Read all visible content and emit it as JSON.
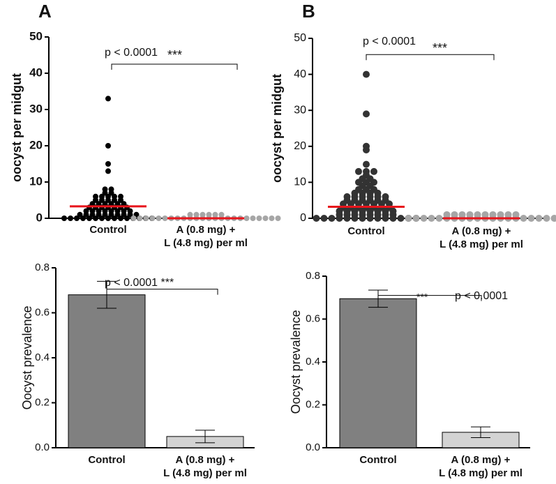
{
  "chart_data": [
    {
      "type": "dotplot",
      "panel": "A",
      "ylabel": "oocyst per midgut",
      "categories": [
        "Control",
        "A (0.8 mg) +\nL (4.8 mg) per ml"
      ],
      "colors": [
        "#000000",
        "#a6a6a6"
      ],
      "values": [
        [
          33,
          20,
          15,
          13,
          8,
          8,
          7,
          7,
          6,
          6,
          6,
          6,
          6,
          5,
          5,
          5,
          5,
          5,
          4,
          4,
          4,
          4,
          4,
          4,
          3,
          3,
          3,
          3,
          3,
          3,
          3,
          2,
          2,
          2,
          2,
          2,
          2,
          2,
          2,
          1,
          1,
          1,
          1,
          1,
          1,
          1,
          1,
          1,
          1,
          0,
          0,
          0,
          0,
          0,
          0,
          0,
          0,
          0,
          0,
          0,
          0,
          0,
          0,
          0
        ],
        [
          1,
          1,
          1,
          1,
          1,
          1,
          0,
          0,
          0,
          0,
          0,
          0,
          0,
          0,
          0,
          0,
          0,
          0,
          0,
          0,
          0,
          0,
          0,
          0,
          0,
          0,
          0,
          0,
          0,
          0
        ]
      ],
      "medians": [
        3.3,
        0
      ],
      "median_color": "#e8141b",
      "annotations": [
        "p < 0.0001",
        "***"
      ],
      "ylim": [
        0,
        50
      ],
      "yticks": [
        0,
        10,
        20,
        30,
        40,
        50
      ]
    },
    {
      "type": "dotplot",
      "panel": "B",
      "ylabel": "oocyst per midgut",
      "categories": [
        "Control",
        "A (0.8 mg) +\nL (4.8 mg) per ml"
      ],
      "colors": [
        "#333333",
        "#a6a6a6"
      ],
      "values": [
        [
          40,
          29,
          20,
          19,
          15,
          13,
          13,
          13,
          12,
          11,
          11,
          10,
          10,
          10,
          9,
          9,
          8,
          8,
          8,
          7,
          7,
          7,
          7,
          6,
          6,
          6,
          6,
          6,
          6,
          5,
          5,
          5,
          5,
          5,
          5,
          4,
          4,
          4,
          4,
          4,
          4,
          4,
          3,
          3,
          3,
          3,
          3,
          3,
          3,
          2,
          2,
          2,
          2,
          2,
          2,
          2,
          2,
          1,
          1,
          1,
          1,
          1,
          1,
          1,
          1,
          0,
          0,
          0,
          0,
          0,
          0,
          0,
          0,
          0,
          0,
          0,
          0,
          0,
          0
        ],
        [
          1,
          1,
          1,
          1,
          1,
          1,
          1,
          1,
          1,
          1,
          0,
          0,
          0,
          0,
          0,
          0,
          0,
          0,
          0,
          0,
          0,
          0,
          0,
          0,
          0,
          0,
          0,
          0,
          0,
          0
        ]
      ],
      "medians": [
        3.2,
        0
      ],
      "median_color": "#e8141b",
      "annotations": [
        "p < 0.0001",
        "***"
      ],
      "ylim": [
        0,
        50
      ],
      "yticks": [
        0,
        10,
        20,
        30,
        40,
        50
      ]
    },
    {
      "type": "bar",
      "ylabel": "Oocyst prevalence",
      "categories": [
        "Control",
        "A (0.8 mg) +\nL (4.8 mg) per ml"
      ],
      "colors": [
        "#808080",
        "#d3d3d3"
      ],
      "values": [
        0.68,
        0.05
      ],
      "errors": [
        0.06,
        0.028
      ],
      "annotations": [
        "p < 0.0001 ***"
      ],
      "ylim": [
        0,
        0.8
      ],
      "yticks": [
        {
          "value": 0,
          "label": "0.0"
        },
        0.2,
        0.4,
        0.6,
        0.8
      ]
    },
    {
      "type": "bar",
      "ylabel": "Oocyst prevalence",
      "categories": [
        "Control",
        "A (0.8 mg) +\nL (4.8 mg) per ml"
      ],
      "colors": [
        "#808080",
        "#d3d3d3"
      ],
      "values": [
        0.695,
        0.072
      ],
      "errors": [
        0.04,
        0.025
      ],
      "annotations": [
        "***",
        "p < 0.0001"
      ],
      "ylim": [
        0,
        0.8
      ],
      "yticks": [
        {
          "value": 0,
          "label": "0.0"
        },
        0.2,
        0.4,
        0.6,
        0.8
      ]
    }
  ]
}
